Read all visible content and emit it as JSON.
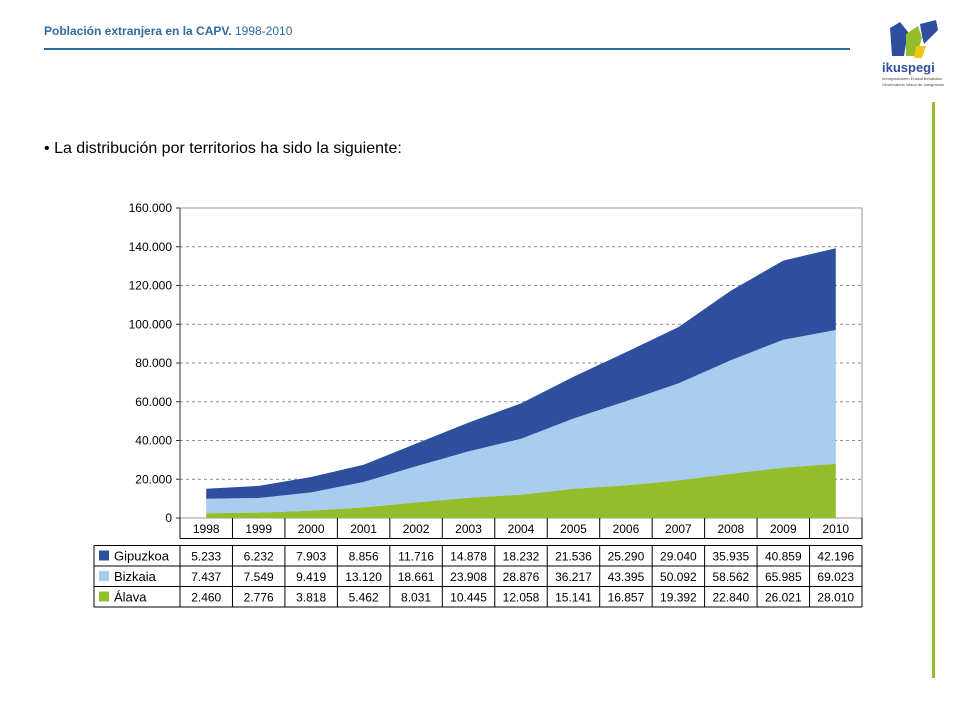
{
  "header": {
    "title": "Población extranjera en la CAPV.",
    "years": "1998-2010"
  },
  "logo": {
    "name": "ikuspegi",
    "tagline_1": "Immigrazioaren Euskal Behatokia",
    "tagline_2": "Observatorio Vasco de Inmigración"
  },
  "intro": {
    "bullet": "•",
    "text": "La distribución por territorios ha sido la siguiente:"
  },
  "colors": {
    "gipuzkoa": "#2e4e9e",
    "bizkaia": "#a9cdee",
    "alava": "#93bd2c",
    "accent_blue": "#2f6aa3",
    "accent_green": "#93bd2c"
  },
  "chart_data": {
    "type": "area",
    "stacked": true,
    "title": "",
    "xlabel": "",
    "ylabel": "",
    "ylim": [
      0,
      160000
    ],
    "yticks": [
      "0",
      "20.000",
      "40.000",
      "60.000",
      "80.000",
      "100.000",
      "120.000",
      "140.000",
      "160.000"
    ],
    "grid": true,
    "x": [
      "1998",
      "1999",
      "2000",
      "2001",
      "2002",
      "2003",
      "2004",
      "2005",
      "2006",
      "2007",
      "2008",
      "2009",
      "2010"
    ],
    "series": [
      {
        "name": "Álava",
        "color": "#93bd2c",
        "values": [
          2460,
          2776,
          3818,
          5462,
          8031,
          10445,
          12058,
          15141,
          16857,
          19392,
          22840,
          26021,
          28010
        ],
        "labels": [
          "2.460",
          "2.776",
          "3.818",
          "5.462",
          "8.031",
          "10.445",
          "12.058",
          "15.141",
          "16.857",
          "19.392",
          "22.840",
          "26.021",
          "28.010"
        ]
      },
      {
        "name": "Bizkaia",
        "color": "#a9cdee",
        "values": [
          7437,
          7549,
          9419,
          13120,
          18661,
          23908,
          28876,
          36217,
          43395,
          50092,
          58562,
          65985,
          69023
        ],
        "labels": [
          "7.437",
          "7.549",
          "9.419",
          "13.120",
          "18.661",
          "23.908",
          "28.876",
          "36.217",
          "43.395",
          "50.092",
          "58.562",
          "65.985",
          "69.023"
        ]
      },
      {
        "name": "Gipuzkoa",
        "color": "#2e4e9e",
        "values": [
          5233,
          6232,
          7903,
          8856,
          11716,
          14878,
          18232,
          21536,
          25290,
          29040,
          35935,
          40859,
          42196
        ],
        "labels": [
          "5.233",
          "6.232",
          "7.903",
          "8.856",
          "11.716",
          "14.878",
          "18.232",
          "21.536",
          "25.290",
          "29.040",
          "35.935",
          "40.859",
          "42.196"
        ]
      }
    ],
    "table_order": [
      "Gipuzkoa",
      "Bizkaia",
      "Álava"
    ]
  }
}
